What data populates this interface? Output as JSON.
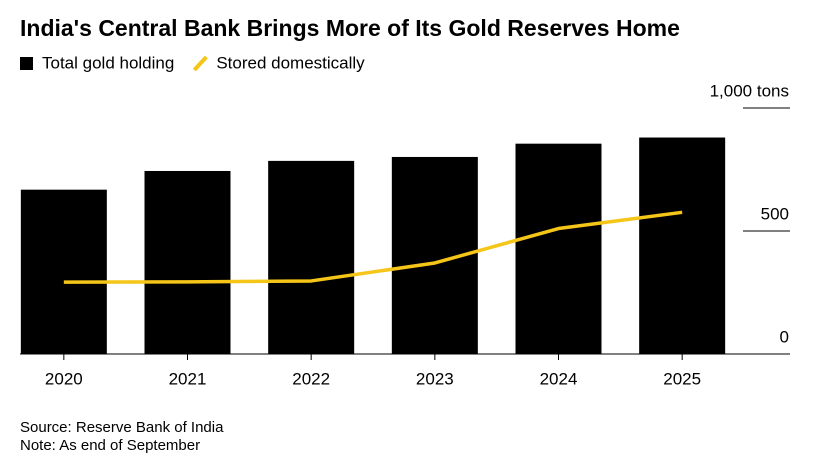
{
  "chart_data": {
    "type": "bar",
    "title": "India's Central Bank Brings More of Its Gold Reserves Home",
    "categories": [
      "2020",
      "2021",
      "2022",
      "2023",
      "2024",
      "2025"
    ],
    "series": [
      {
        "name": "Total gold holding",
        "color": "#000000",
        "type": "bar",
        "values": [
          668,
          744,
          785,
          801,
          855,
          880
        ]
      },
      {
        "name": "Stored domestically",
        "color": "#f5c518",
        "type": "line",
        "values": [
          292,
          293,
          297,
          370,
          510,
          576
        ]
      }
    ],
    "ylim": [
      0,
      1000
    ],
    "yticks": [
      0,
      500,
      {
        "value": 1000,
        "label": "1,000 tons"
      }
    ],
    "axis_side": "right",
    "source": "Source: Reserve Bank of India",
    "note": "Note: As end of September"
  }
}
